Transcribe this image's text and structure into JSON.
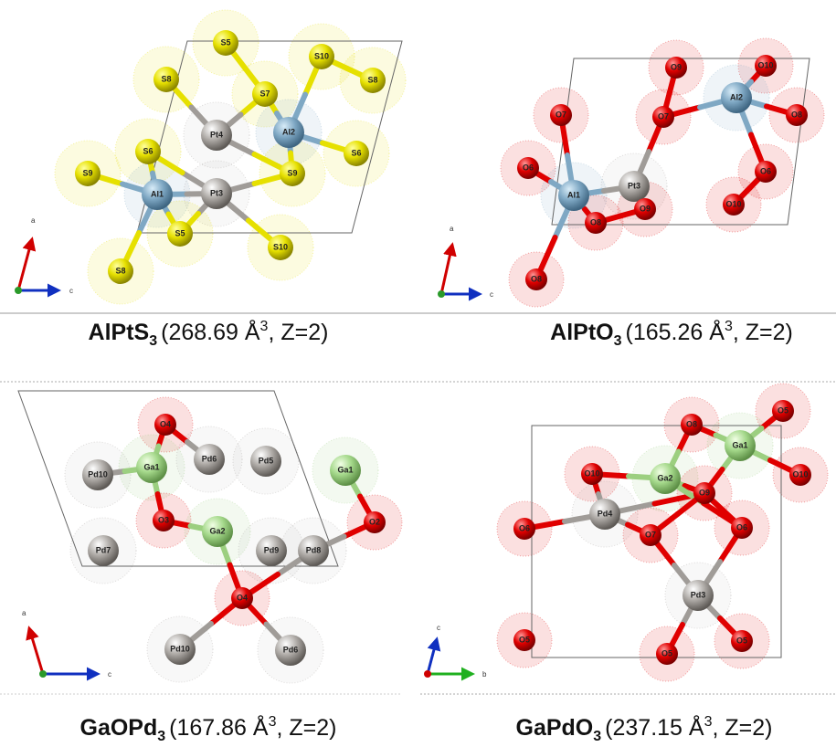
{
  "panels": [
    {
      "atoms": [
        "S5",
        "S10",
        "S8",
        "S8",
        "S7",
        "Pt4",
        "Al2",
        "S6",
        "S9",
        "S6",
        "S9",
        "Al1",
        "Pt3",
        "S5",
        "S10",
        "S8"
      ],
      "axes": [
        "a",
        "c"
      ],
      "caption": {
        "formula": "AlPtS",
        "subscript": "3",
        "volume": "(268.69 Å",
        "superscript": "3",
        "rest": ", Z=2)"
      }
    },
    {
      "atoms": [
        "O9",
        "O10",
        "O7",
        "O7",
        "Al2",
        "O8",
        "O6",
        "Pt3",
        "O6",
        "Al1",
        "O8",
        "O9",
        "O10",
        "O8"
      ],
      "axes": [
        "a",
        "c"
      ],
      "caption": {
        "formula": "AlPtO",
        "subscript": "3",
        "volume": "(165.26 Å",
        "superscript": "3",
        "rest": ", Z=2)"
      }
    },
    {
      "atoms": [
        "O4",
        "Pd10",
        "Ga1",
        "Pd6",
        "Pd5",
        "Ga1",
        "O3",
        "Ga2",
        "O2",
        "Pd7",
        "Pd9",
        "Pd8",
        "O4",
        "Pd10",
        "Pd6"
      ],
      "axes": [
        "a",
        "c"
      ],
      "caption": {
        "formula": "GaOPd",
        "subscript": "3",
        "volume": "(167.86 Å",
        "superscript": "3",
        "rest": ", Z=2)"
      }
    },
    {
      "atoms": [
        "O8",
        "O5",
        "Ga1",
        "O10",
        "Ga2",
        "O9",
        "O10",
        "O6",
        "Pd4",
        "O6",
        "O7",
        "Pd3",
        "O5",
        "O5",
        "O5"
      ],
      "axes": [
        "c",
        "b"
      ],
      "caption": {
        "formula": "GaPdO",
        "subscript": "3",
        "volume": "(237.15 Å",
        "superscript": "3",
        "rest": ", Z=2)"
      }
    }
  ]
}
